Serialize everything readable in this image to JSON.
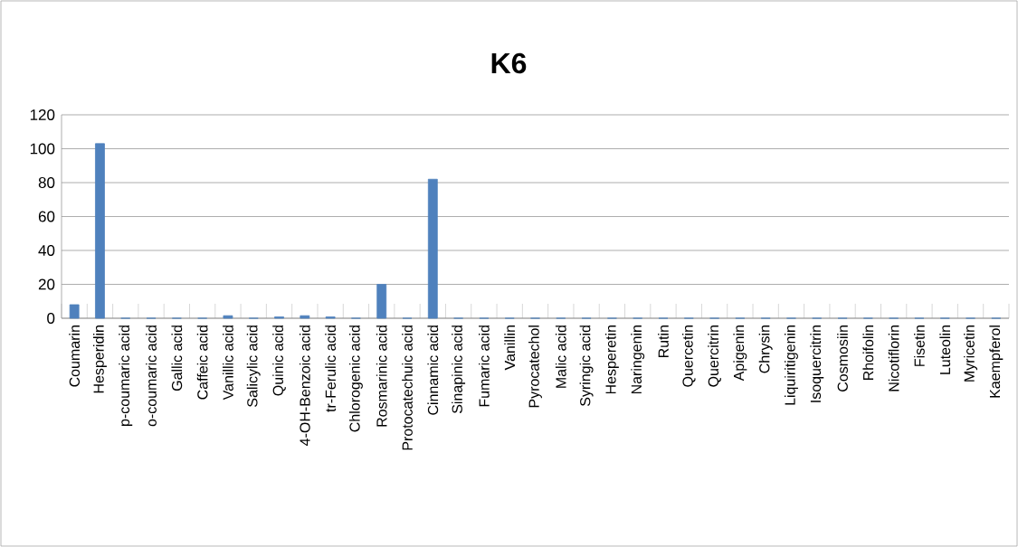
{
  "chart_data": {
    "type": "bar",
    "title": "K6",
    "categories": [
      "Coumarin",
      "Hesperidin",
      "p-coumaric acid",
      "o-coumaric acid",
      "Gallic acid",
      "Caffeic acid",
      "Vanillic acid",
      "Salicylic acid",
      "Quinic acid",
      "4-OH-Benzoic acid",
      "tr-Ferulic acid",
      "Chlorogenic acid",
      "Rosmarinic acid",
      "Protocatechuic acid",
      "Cinnamic acid",
      "Sinapinic acid",
      "Fumaric acid",
      "Vanillin",
      "Pyrocatechol",
      "Malic acid",
      "Syringic acid",
      "Hesperetin",
      "Naringenin",
      "Rutin",
      "Quercetin",
      "Quercitrin",
      "Apigenin",
      "Chrysin",
      "Liquiritigenin",
      "Isoquercitrin",
      "Cosmosiin",
      "Rhoifolin",
      "Nicotiflorin",
      "Fisetin",
      "Luteolin",
      "Myricetin",
      "Kaempferol"
    ],
    "values": [
      8,
      103,
      0,
      0,
      0,
      0,
      1.5,
      0,
      0.8,
      1.5,
      0.8,
      0,
      20,
      0,
      82,
      0,
      0,
      0,
      0,
      0,
      0,
      0,
      0,
      0,
      0,
      0,
      0,
      0,
      0,
      0,
      0,
      0,
      0,
      0,
      0,
      0,
      0
    ],
    "color": "#4f81bd",
    "ylim": [
      0,
      120
    ],
    "yticks": [
      0,
      20,
      40,
      60,
      80,
      100,
      120
    ],
    "grid": "y"
  }
}
